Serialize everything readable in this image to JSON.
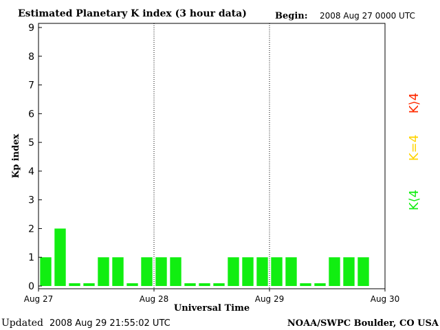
{
  "header": {
    "title": "Estimated Planetary K index (3 hour data)",
    "begin_label": "Begin:",
    "begin_value": "2008 Aug 27 0000 UTC"
  },
  "footer": {
    "updated_label": "Updated",
    "updated_value": "2008 Aug 29 21:55:02 UTC",
    "credit": "NOAA/SWPC Boulder, CO USA"
  },
  "legend": {
    "high": {
      "label": "K⟩4",
      "color": "#ff2a00"
    },
    "equal": {
      "label": "K=4",
      "color": "#ffd400"
    },
    "low": {
      "label": "K⟨4",
      "color": "#11ee11"
    }
  },
  "chart_data": {
    "type": "bar",
    "xlabel": "Universal Time",
    "ylabel": "Kp index",
    "ylim": [
      0,
      9
    ],
    "yticks": [
      0,
      1,
      2,
      3,
      4,
      5,
      6,
      7,
      8,
      9
    ],
    "x_ticks": [
      "Aug 27",
      "Aug 28",
      "Aug 29",
      "Aug 30"
    ],
    "day_dividers": [
      "Aug 28",
      "Aug 29"
    ],
    "interval_hours": 3,
    "bar_color": "#11ee11",
    "series": [
      {
        "values": [
          1,
          2,
          0,
          0,
          1,
          1,
          0,
          1,
          1,
          1,
          0,
          0,
          0,
          1,
          1,
          1,
          1,
          1,
          0,
          0,
          1,
          1,
          1
        ]
      }
    ]
  }
}
